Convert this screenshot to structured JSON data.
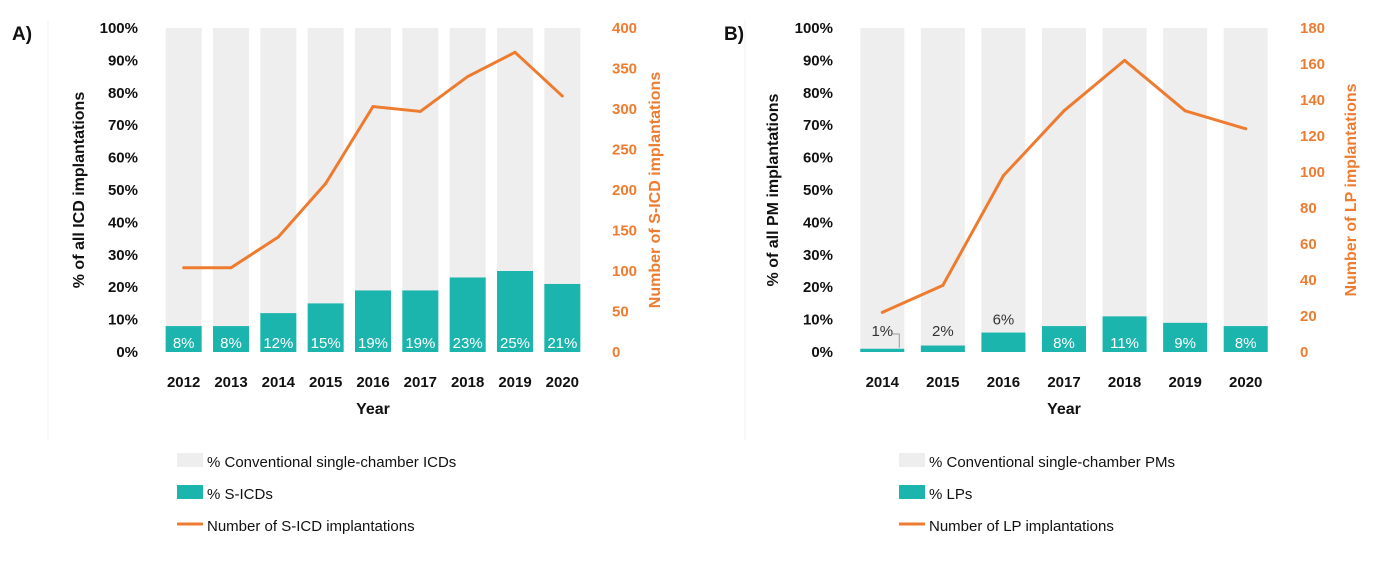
{
  "colors": {
    "background_bar": "#eeeeee",
    "share_bar": "#1cb5ad",
    "line": "#ee7c30",
    "label_on_bar": "#ffffff",
    "label_above_bar": "#333333"
  },
  "chart_data": [
    {
      "type": "bar",
      "panel_label": "A)",
      "title": "",
      "xlabel": "Year",
      "ylabel": "% of all ICD implantations",
      "y2label": "Number of S-ICD implantations",
      "categories": [
        "2012",
        "2013",
        "2014",
        "2015",
        "2016",
        "2017",
        "2018",
        "2019",
        "2020"
      ],
      "ylim": [
        0,
        100
      ],
      "y_ticks": [
        "0%",
        "10%",
        "20%",
        "30%",
        "40%",
        "50%",
        "60%",
        "70%",
        "80%",
        "90%",
        "100%"
      ],
      "y2lim": [
        0,
        400
      ],
      "y2_ticks": [
        "0",
        "50",
        "100",
        "150",
        "200",
        "250",
        "300",
        "350",
        "400"
      ],
      "series": [
        {
          "name": "% Conventional single-chamber ICDs",
          "type": "bar",
          "axis": "left",
          "values": [
            92,
            92,
            88,
            85,
            81,
            81,
            77,
            75,
            79
          ]
        },
        {
          "name": "% S-ICDs",
          "type": "bar",
          "axis": "left",
          "values": [
            8,
            8,
            12,
            15,
            19,
            19,
            23,
            25,
            21
          ],
          "labels": [
            "8%",
            "8%",
            "12%",
            "15%",
            "19%",
            "19%",
            "23%",
            "25%",
            "21%"
          ]
        },
        {
          "name": "Number of S-ICD implantations",
          "type": "line",
          "axis": "right",
          "values": [
            104,
            104,
            142,
            208,
            303,
            297,
            340,
            370,
            316
          ]
        }
      ],
      "legend": {
        "position": "bottom",
        "items": [
          "% Conventional single-chamber ICDs",
          "% S-ICDs",
          "Number of S-ICD implantations"
        ]
      }
    },
    {
      "type": "bar",
      "panel_label": "B)",
      "title": "",
      "xlabel": "Year",
      "ylabel": "% of all PM implantations",
      "y2label": "Number of LP implantations",
      "categories": [
        "2014",
        "2015",
        "2016",
        "2017",
        "2018",
        "2019",
        "2020"
      ],
      "ylim": [
        0,
        100
      ],
      "y_ticks": [
        "0%",
        "10%",
        "20%",
        "30%",
        "40%",
        "50%",
        "60%",
        "70%",
        "80%",
        "90%",
        "100%"
      ],
      "y2lim": [
        0,
        180
      ],
      "y2_ticks": [
        "0",
        "20",
        "40",
        "60",
        "80",
        "100",
        "120",
        "140",
        "160",
        "180"
      ],
      "series": [
        {
          "name": "% Conventional single-chamber PMs",
          "type": "bar",
          "axis": "left",
          "values": [
            99,
            98,
            94,
            92,
            89,
            91,
            92
          ]
        },
        {
          "name": "% LPs",
          "type": "bar",
          "axis": "left",
          "values": [
            1,
            2,
            6,
            8,
            11,
            9,
            8
          ],
          "labels": [
            "1%",
            "2%",
            "6%",
            "8%",
            "11%",
            "9%",
            "8%"
          ]
        },
        {
          "name": "Number of LP implantations",
          "type": "line",
          "axis": "right",
          "values": [
            22,
            37,
            98,
            134,
            162,
            134,
            124
          ]
        }
      ],
      "legend": {
        "position": "bottom",
        "items": [
          "% Conventional single-chamber PMs",
          "% LPs",
          "Number of LP implantations"
        ]
      }
    }
  ]
}
